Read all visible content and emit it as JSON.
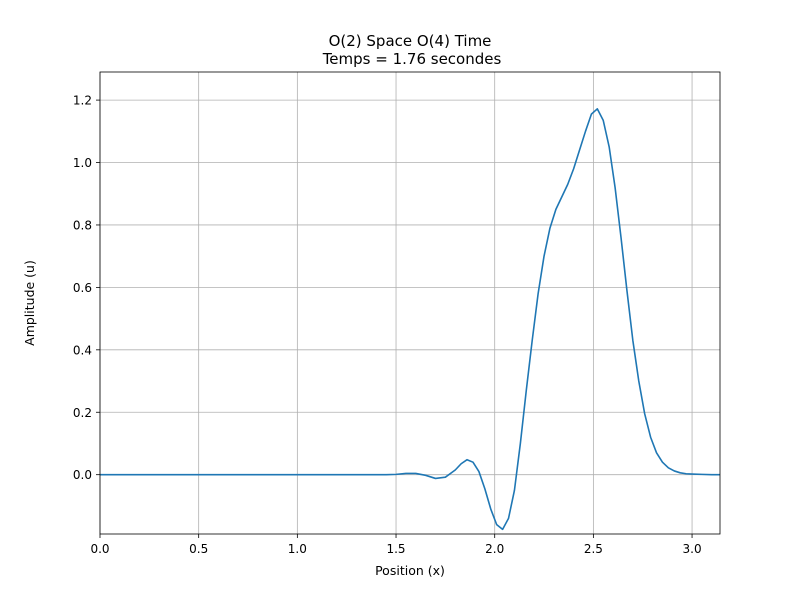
{
  "chart_data": {
    "type": "line",
    "title": "O(2) Space O(4) Time",
    "subtitle": "Temps = 1.76 secondes",
    "xlabel": "Position (x)",
    "ylabel": "Amplitude (u)",
    "xlim": [
      0,
      3.1416
    ],
    "ylim": [
      -0.19,
      1.29
    ],
    "xticks": [
      "0.0",
      "0.5",
      "1.0",
      "1.5",
      "2.0",
      "2.5",
      "3.0"
    ],
    "yticks": [
      "0.0",
      "0.2",
      "0.4",
      "0.6",
      "0.8",
      "1.0",
      "1.2"
    ],
    "grid": true,
    "line_color": "#1f77b4",
    "series": [
      {
        "x": [
          0.0,
          0.5,
          1.0,
          1.3,
          1.45,
          1.5,
          1.55,
          1.6,
          1.65,
          1.7,
          1.75,
          1.8,
          1.83,
          1.86,
          1.89,
          1.92,
          1.95,
          1.98,
          2.01,
          2.04,
          2.07,
          2.1,
          2.13,
          2.16,
          2.19,
          2.22,
          2.25,
          2.28,
          2.31,
          2.34,
          2.37,
          2.4,
          2.43,
          2.46,
          2.49,
          2.52,
          2.55,
          2.58,
          2.61,
          2.64,
          2.67,
          2.7,
          2.73,
          2.76,
          2.79,
          2.82,
          2.85,
          2.88,
          2.91,
          2.94,
          2.97,
          3.0,
          3.05,
          3.1,
          3.14
        ],
        "y": [
          0.0,
          0.0,
          0.0,
          0.0,
          0.0,
          0.001,
          0.004,
          0.004,
          -0.002,
          -0.012,
          -0.008,
          0.015,
          0.035,
          0.048,
          0.04,
          0.01,
          -0.045,
          -0.11,
          -0.16,
          -0.175,
          -0.14,
          -0.05,
          0.1,
          0.27,
          0.43,
          0.58,
          0.7,
          0.79,
          0.85,
          0.89,
          0.93,
          0.98,
          1.04,
          1.1,
          1.155,
          1.172,
          1.135,
          1.05,
          0.92,
          0.76,
          0.59,
          0.43,
          0.3,
          0.195,
          0.12,
          0.07,
          0.04,
          0.022,
          0.012,
          0.006,
          0.003,
          0.002,
          0.001,
          0.0,
          0.0
        ]
      }
    ]
  }
}
